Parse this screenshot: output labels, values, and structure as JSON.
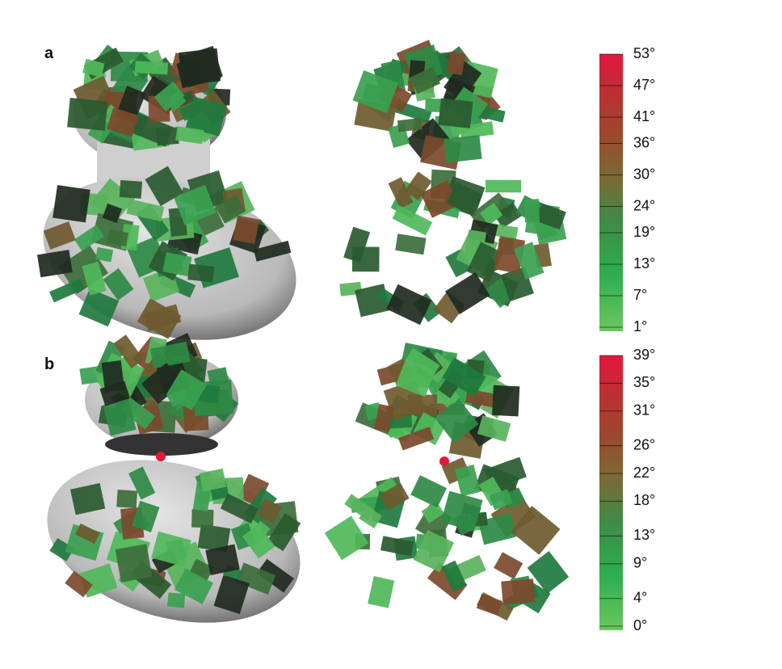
{
  "panels": [
    {
      "label": "a",
      "colorbar": {
        "range": [
          1,
          53
        ],
        "ticks": [
          {
            "value": 53,
            "label": "53°"
          },
          {
            "value": 47,
            "label": "47°"
          },
          {
            "value": 41,
            "label": "41°"
          },
          {
            "value": 36,
            "label": "36°"
          },
          {
            "value": 30,
            "label": "30°"
          },
          {
            "value": 24,
            "label": "24°"
          },
          {
            "value": 19,
            "label": "19°"
          },
          {
            "value": 13,
            "label": "13°"
          },
          {
            "value": 7,
            "label": "7°"
          },
          {
            "value": 1,
            "label": "1°"
          }
        ]
      }
    },
    {
      "label": "b",
      "colorbar": {
        "range": [
          0,
          39
        ],
        "ticks": [
          {
            "value": 39,
            "label": "39°"
          },
          {
            "value": 35,
            "label": "35°"
          },
          {
            "value": 31,
            "label": "31°"
          },
          {
            "value": 26,
            "label": "26°"
          },
          {
            "value": 22,
            "label": "22°"
          },
          {
            "value": 18,
            "label": "18°"
          },
          {
            "value": 13,
            "label": "13°"
          },
          {
            "value": 9,
            "label": "9°"
          },
          {
            "value": 4,
            "label": "4°"
          },
          {
            "value": 0,
            "label": "0°"
          }
        ]
      }
    }
  ]
}
